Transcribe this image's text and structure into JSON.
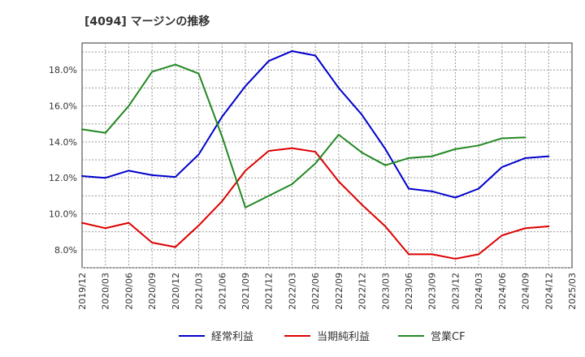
{
  "chart_data": {
    "type": "line",
    "title": "[4094]  マージンの推移",
    "xlabel": "",
    "ylabel": "",
    "ylim": [
      7.0,
      19.5
    ],
    "yticks": [
      8,
      10,
      12,
      14,
      16,
      18
    ],
    "y_tick_labels": [
      "8.0%",
      "10.0%",
      "12.0%",
      "14.0%",
      "16.0%",
      "18.0%"
    ],
    "categories": [
      "2019/12",
      "2020/03",
      "2020/06",
      "2020/09",
      "2020/12",
      "2021/03",
      "2021/06",
      "2021/09",
      "2021/12",
      "2022/03",
      "2022/06",
      "2022/09",
      "2022/12",
      "2023/03",
      "2023/06",
      "2023/09",
      "2023/12",
      "2024/03",
      "2024/06",
      "2024/09",
      "2024/12",
      "2025/03"
    ],
    "grid": true,
    "legend_position": "bottom",
    "series": [
      {
        "name": "経常利益",
        "color": "#0000cc",
        "values": [
          12.1,
          12.0,
          12.4,
          12.15,
          12.05,
          13.3,
          15.4,
          17.1,
          18.5,
          19.05,
          18.8,
          17.0,
          15.5,
          13.6,
          11.4,
          11.25,
          10.9,
          11.4,
          12.6,
          13.1,
          13.2,
          null
        ]
      },
      {
        "name": "当期純利益",
        "color": "#dd0000",
        "values": [
          9.5,
          9.2,
          9.5,
          8.4,
          8.15,
          9.35,
          10.7,
          12.4,
          13.5,
          13.65,
          13.45,
          11.8,
          10.5,
          9.3,
          7.75,
          7.75,
          7.5,
          7.75,
          8.8,
          9.2,
          9.3,
          null
        ]
      },
      {
        "name": "営業CF",
        "color": "#228822",
        "values": [
          14.7,
          14.5,
          16.0,
          17.9,
          18.3,
          17.8,
          14.3,
          10.35,
          11.0,
          11.65,
          12.8,
          14.4,
          13.4,
          12.7,
          13.1,
          13.2,
          13.6,
          13.8,
          14.2,
          14.25,
          null,
          null
        ]
      }
    ]
  }
}
